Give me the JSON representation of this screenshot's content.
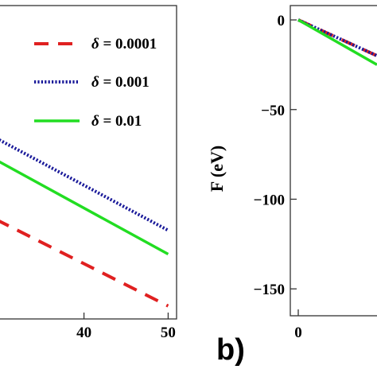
{
  "chart_data": [
    {
      "type": "line",
      "panel": "left (cropped)",
      "title": "",
      "xlabel": "",
      "ylabel": "",
      "xlim": [
        27,
        51
      ],
      "ylim": [
        -155,
        -10
      ],
      "x_ticks": [
        {
          "value": 40,
          "label": "40"
        },
        {
          "value": 50,
          "label": "50"
        }
      ],
      "legend_placement": "top-right",
      "legend": [
        {
          "symbol": "δ",
          "text": " = 0.0001",
          "color": "#e02020",
          "dash": "dashed"
        },
        {
          "symbol": "δ",
          "text": " = 0.001",
          "color": "#1a1a9a",
          "dash": "dotted"
        },
        {
          "symbol": "δ",
          "text": " = 0.01",
          "color": "#22dd22",
          "dash": "solid"
        }
      ],
      "series": [
        {
          "color": "#e02020",
          "dash": "dashed",
          "x": [
            27,
            50
          ],
          "y": [
            -104,
            -149
          ]
        },
        {
          "color": "#1a1a9a",
          "dash": "dotted",
          "x": [
            27,
            50
          ],
          "y": [
            -66,
            -114
          ]
        },
        {
          "color": "#22dd22",
          "dash": "solid",
          "x": [
            27,
            50
          ],
          "y": [
            -76,
            -125
          ]
        }
      ]
    },
    {
      "type": "line",
      "panel": "b) (cropped)",
      "title": "",
      "xlabel": "",
      "ylabel": "F (eV)",
      "xlim": [
        -2,
        9
      ],
      "ylim": [
        -165,
        8
      ],
      "y_ticks": [
        {
          "value": 0,
          "label": "0"
        },
        {
          "value": -50,
          "label": "−50"
        },
        {
          "value": -100,
          "label": "−100"
        },
        {
          "value": -150,
          "label": "−150"
        }
      ],
      "x_ticks": [
        {
          "value": 0,
          "label": "0"
        }
      ],
      "series": [
        {
          "color": "#e02020",
          "dash": "dashed",
          "x": [
            0,
            9
          ],
          "y": [
            0,
            -20
          ]
        },
        {
          "color": "#1a1a9a",
          "dash": "dotted",
          "x": [
            0,
            9
          ],
          "y": [
            0,
            -20
          ]
        },
        {
          "color": "#22dd22",
          "dash": "solid",
          "x": [
            0,
            9
          ],
          "y": [
            0,
            -25
          ]
        }
      ]
    }
  ],
  "panel_label": "b)"
}
